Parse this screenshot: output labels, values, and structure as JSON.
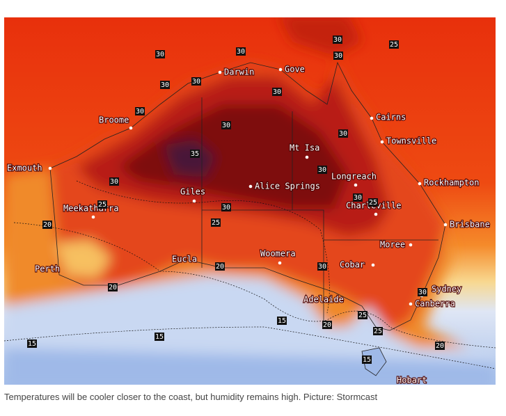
{
  "map": {
    "cities": [
      "Darwin",
      "Gove",
      "Broome",
      "Exmouth",
      "Cairns",
      "Townsville",
      "Mt Isa",
      "Longreach",
      "Rockhampton",
      "Alice Springs",
      "Giles",
      "Meekatharra",
      "Charleville",
      "Brisbane",
      "Moree",
      "Cobar",
      "Woomera",
      "Eucla",
      "Perth",
      "Sydney",
      "Canberra",
      "Adelaide",
      "Hobart"
    ],
    "contour_labels": [
      30,
      30,
      30,
      30,
      25,
      30,
      30,
      30,
      30,
      30,
      30,
      35,
      30,
      30,
      30,
      25,
      25,
      20,
      30,
      25,
      20,
      30,
      20,
      15,
      25,
      20,
      25,
      15,
      15,
      15,
      20,
      30
    ]
  },
  "caption": "Temperatures will be cooler closer to the coast, but humidity remains high. Picture: Stormcast"
}
